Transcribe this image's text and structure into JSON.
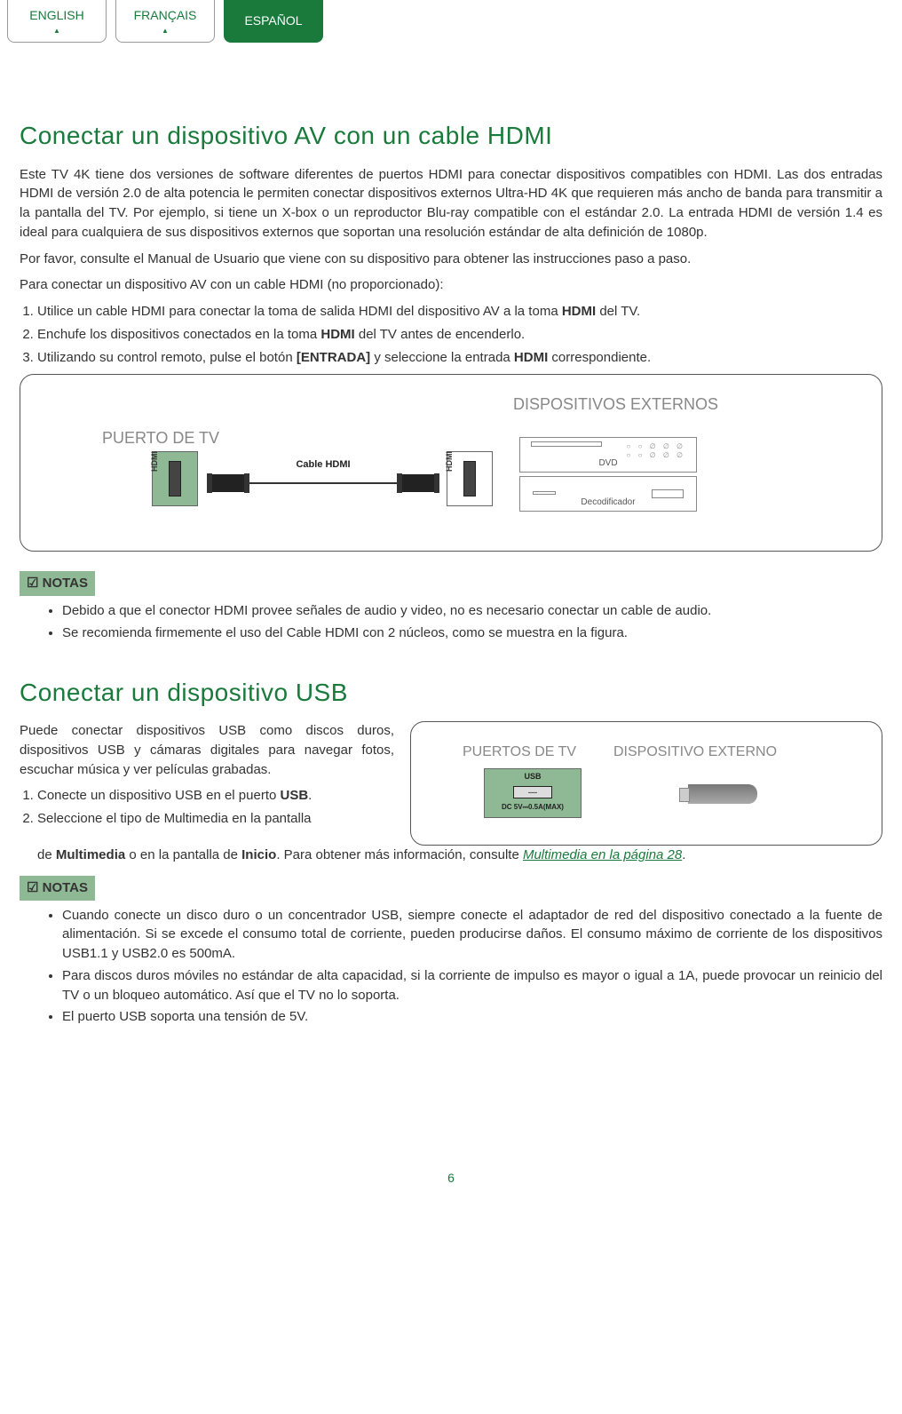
{
  "tabs": {
    "english": "ENGLISH",
    "francais": "FRANÇAIS",
    "espanol": "ESPAÑOL"
  },
  "hdmi": {
    "title": "Conectar un dispositivo AV con un cable HDMI",
    "p1": "Este TV 4K tiene dos versiones de software diferentes de puertos HDMI para conectar dispositivos compatibles con HDMI. Las dos entradas HDMI de versión 2.0 de alta potencia le permiten conectar dispositivos externos Ultra-HD 4K que requieren más ancho de banda para transmitir a la pantalla del TV. Por ejemplo, si tiene un X-box o un reproductor Blu-ray compatible con el estándar 2.0. La entrada HDMI de versión 1.4 es ideal para cualquiera de sus dispositivos externos que soportan una resolución estándar de alta definición de 1080p.",
    "p2": "Por favor, consulte el Manual de Usuario que viene con su dispositivo para obtener las instrucciones paso a paso.",
    "p3": "Para conectar un dispositivo AV con un cable HDMI (no proporcionado):",
    "li1a": "Utilice un cable HDMI para conectar la toma de salida HDMI del dispositivo AV a la toma ",
    "li1b": "HDMI",
    "li1c": " del TV.",
    "li2a": "Enchufe los dispositivos conectados en la toma ",
    "li2b": "HDMI",
    "li2c": " del TV antes de encenderlo.",
    "li3a": "Utilizando su control remoto, pulse el botón ",
    "li3b": "[ENTRADA]",
    "li3c": " y seleccione la entrada ",
    "li3d": "HDMI",
    "li3e": " correspondiente.",
    "diag": {
      "puerto": "PUERTO DE TV",
      "disp": "DISPOSITIVOS EXTERNOS",
      "cable": "Cable HDMI",
      "hdmi": "HDMI",
      "dvd": "DVD",
      "deco": "Decodificador"
    },
    "notas": "NOTAS",
    "n1": "Debido a que el conector HDMI provee señales de audio y video, no es necesario conectar un cable de audio.",
    "n2": "Se recomienda firmemente el uso del Cable HDMI con 2 núcleos, como se muestra en la figura."
  },
  "usb": {
    "title": "Conectar un dispositivo USB",
    "p1": "Puede conectar dispositivos USB como discos duros, dispositivos USB y cámaras digitales para navegar fotos, escuchar música y ver películas grabadas.",
    "li1a": "Conecte un dispositivo USB en el puerto ",
    "li1b": "USB",
    "li1c": ".",
    "li2": "Seleccione el tipo de Multimedia en la pantalla",
    "li2c_a": "de ",
    "li2c_b": "Multimedia",
    "li2c_c": " o en la pantalla de ",
    "li2c_d": "Inicio",
    "li2c_e": ". Para obtener más información, consulte ",
    "li2c_link": "Multimedia en la página 28",
    "li2c_f": ".",
    "diag": {
      "puertos": "PUERTOS DE TV",
      "ext": "DISPOSITIVO EXTERNO",
      "usb": "USB",
      "dc": "DC 5V⎓0.5A(MAX)"
    },
    "notas": "NOTAS",
    "n1": "Cuando conecte un disco duro o un concentrador USB, siempre conecte el adaptador de red del dispositivo conectado a la fuente de alimentación. Si se excede el consumo total de corriente, pueden producirse daños. El consumo máximo de corriente de los dispositivos USB1.1 y USB2.0 es 500mA.",
    "n2": "Para discos duros móviles no estándar de alta capacidad, si la corriente de impulso es mayor o igual a 1A, puede provocar un reinicio del TV o un bloqueo automático. Así que el TV no lo soporta.",
    "n3": "El puerto USB soporta una tensión de 5V."
  },
  "page": "6",
  "colors": {
    "green": "#1a7a3c",
    "port": "#8fb895",
    "grey": "#888888"
  }
}
